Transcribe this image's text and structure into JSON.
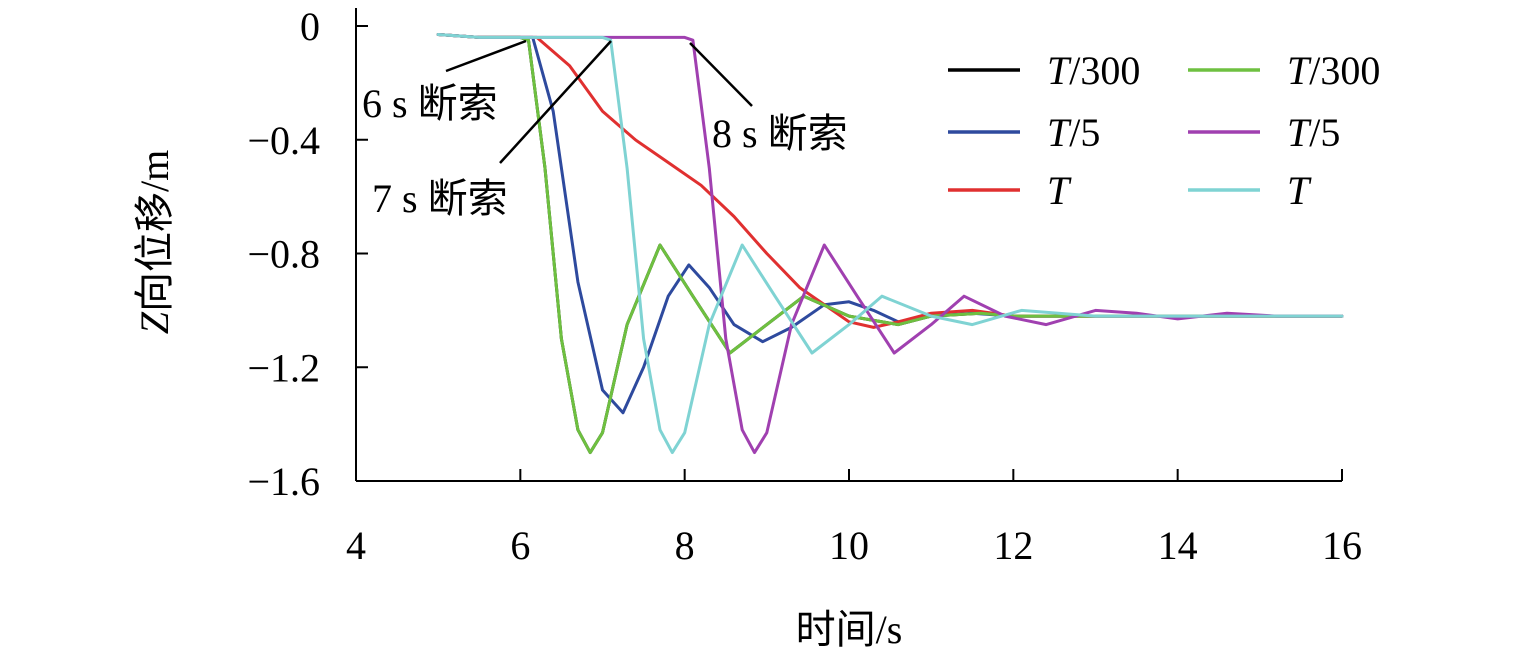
{
  "chart_data": {
    "type": "line",
    "title": "",
    "xlabel": "时间/s",
    "ylabel": "Z向位移/m",
    "xlim": [
      4,
      16
    ],
    "ylim": [
      -1.6,
      0
    ],
    "x_ticks": [
      4,
      6,
      8,
      10,
      12,
      14,
      16
    ],
    "x_tick_labels": [
      "4",
      "6",
      "8",
      "10",
      "12",
      "14",
      "16"
    ],
    "y_ticks": [
      0,
      -0.4,
      -0.8,
      -1.2,
      -1.6
    ],
    "y_tick_labels": [
      "0",
      "−0.4",
      "−0.8",
      "−1.2",
      "−1.6"
    ],
    "grid": false,
    "legend_position": "top-right",
    "series": [
      {
        "name": "T/300",
        "color": "#000000",
        "x": [
          5.0,
          5.5,
          6.0,
          6.1,
          6.3,
          6.5,
          6.7,
          6.85,
          7.0,
          7.3,
          7.7,
          8.1,
          8.55,
          9.0,
          9.45,
          10.0,
          10.6,
          11.0,
          11.6,
          12.0,
          13.0,
          14.0,
          15.0,
          16.0
        ],
        "y": [
          -0.03,
          -0.04,
          -0.04,
          -0.05,
          -0.5,
          -1.1,
          -1.42,
          -1.5,
          -1.43,
          -1.05,
          -0.77,
          -0.95,
          -1.15,
          -1.05,
          -0.95,
          -1.02,
          -1.05,
          -1.02,
          -1.01,
          -1.02,
          -1.02,
          -1.02,
          -1.02,
          -1.02
        ]
      },
      {
        "name": "T/5",
        "color": "#2e4a9e",
        "x": [
          5.0,
          5.5,
          6.0,
          6.15,
          6.4,
          6.7,
          7.0,
          7.25,
          7.5,
          7.8,
          8.05,
          8.3,
          8.6,
          8.95,
          9.3,
          9.7,
          10.0,
          10.3,
          10.6,
          11.0,
          11.5,
          12.0,
          13.0,
          14.0,
          16.0
        ],
        "y": [
          -0.03,
          -0.04,
          -0.04,
          -0.04,
          -0.3,
          -0.9,
          -1.28,
          -1.36,
          -1.2,
          -0.95,
          -0.84,
          -0.92,
          -1.05,
          -1.11,
          -1.06,
          -0.98,
          -0.97,
          -1.0,
          -1.04,
          -1.02,
          -1.01,
          -1.02,
          -1.02,
          -1.02,
          -1.02
        ]
      },
      {
        "name": "T",
        "color": "#e03030",
        "x": [
          5.0,
          5.5,
          6.0,
          6.2,
          6.6,
          7.0,
          7.4,
          7.8,
          8.2,
          8.6,
          9.0,
          9.4,
          9.8,
          10.0,
          10.3,
          10.6,
          11.0,
          11.5,
          12.0,
          13.0,
          14.0,
          16.0
        ],
        "y": [
          -0.03,
          -0.04,
          -0.04,
          -0.04,
          -0.14,
          -0.3,
          -0.4,
          -0.48,
          -0.56,
          -0.67,
          -0.8,
          -0.92,
          -1.0,
          -1.04,
          -1.06,
          -1.04,
          -1.01,
          -1.0,
          -1.02,
          -1.02,
          -1.02,
          -1.02
        ]
      },
      {
        "name": "T/300",
        "color": "#6ec040",
        "x": [
          5.0,
          5.5,
          6.0,
          6.1,
          6.3,
          6.5,
          6.7,
          6.85,
          7.0,
          7.3,
          7.7,
          8.1,
          8.55,
          9.0,
          9.45,
          10.0,
          10.6,
          11.0,
          11.6,
          12.0,
          13.0,
          14.0,
          15.0,
          16.0
        ],
        "y": [
          -0.03,
          -0.04,
          -0.04,
          -0.05,
          -0.5,
          -1.1,
          -1.42,
          -1.5,
          -1.43,
          -1.05,
          -0.77,
          -0.95,
          -1.15,
          -1.05,
          -0.95,
          -1.02,
          -1.05,
          -1.02,
          -1.01,
          -1.02,
          -1.02,
          -1.02,
          -1.02,
          -1.02
        ]
      },
      {
        "name": "T/5",
        "color": "#a040b0",
        "x": [
          5.0,
          5.5,
          6.0,
          7.0,
          8.0,
          8.1,
          8.3,
          8.5,
          8.7,
          8.85,
          9.0,
          9.3,
          9.7,
          10.1,
          10.55,
          11.0,
          11.4,
          11.9,
          12.4,
          13.0,
          13.5,
          14.0,
          14.6,
          15.2,
          16.0
        ],
        "y": [
          -0.03,
          -0.04,
          -0.04,
          -0.04,
          -0.04,
          -0.05,
          -0.5,
          -1.1,
          -1.42,
          -1.5,
          -1.43,
          -1.05,
          -0.77,
          -0.95,
          -1.15,
          -1.05,
          -0.95,
          -1.02,
          -1.05,
          -1.0,
          -1.01,
          -1.03,
          -1.01,
          -1.02,
          -1.02
        ]
      },
      {
        "name": "T",
        "color": "#7fd3d3",
        "x": [
          5.0,
          5.5,
          6.0,
          7.0,
          7.1,
          7.3,
          7.5,
          7.7,
          7.85,
          8.0,
          8.3,
          8.7,
          9.1,
          9.55,
          10.0,
          10.4,
          11.0,
          11.5,
          12.1,
          13.0,
          14.0,
          15.0,
          16.0
        ],
        "y": [
          -0.03,
          -0.04,
          -0.04,
          -0.04,
          -0.05,
          -0.5,
          -1.1,
          -1.42,
          -1.5,
          -1.43,
          -1.05,
          -0.77,
          -0.95,
          -1.15,
          -1.05,
          -0.95,
          -1.02,
          -1.05,
          -1.0,
          -1.02,
          -1.02,
          -1.02,
          -1.02
        ]
      }
    ],
    "annotations": [
      {
        "text": "6 s 断索",
        "x": 6.0
      },
      {
        "text": "7 s 断索",
        "x": 7.0
      },
      {
        "text": "8 s 断索",
        "x": 8.0
      }
    ]
  }
}
